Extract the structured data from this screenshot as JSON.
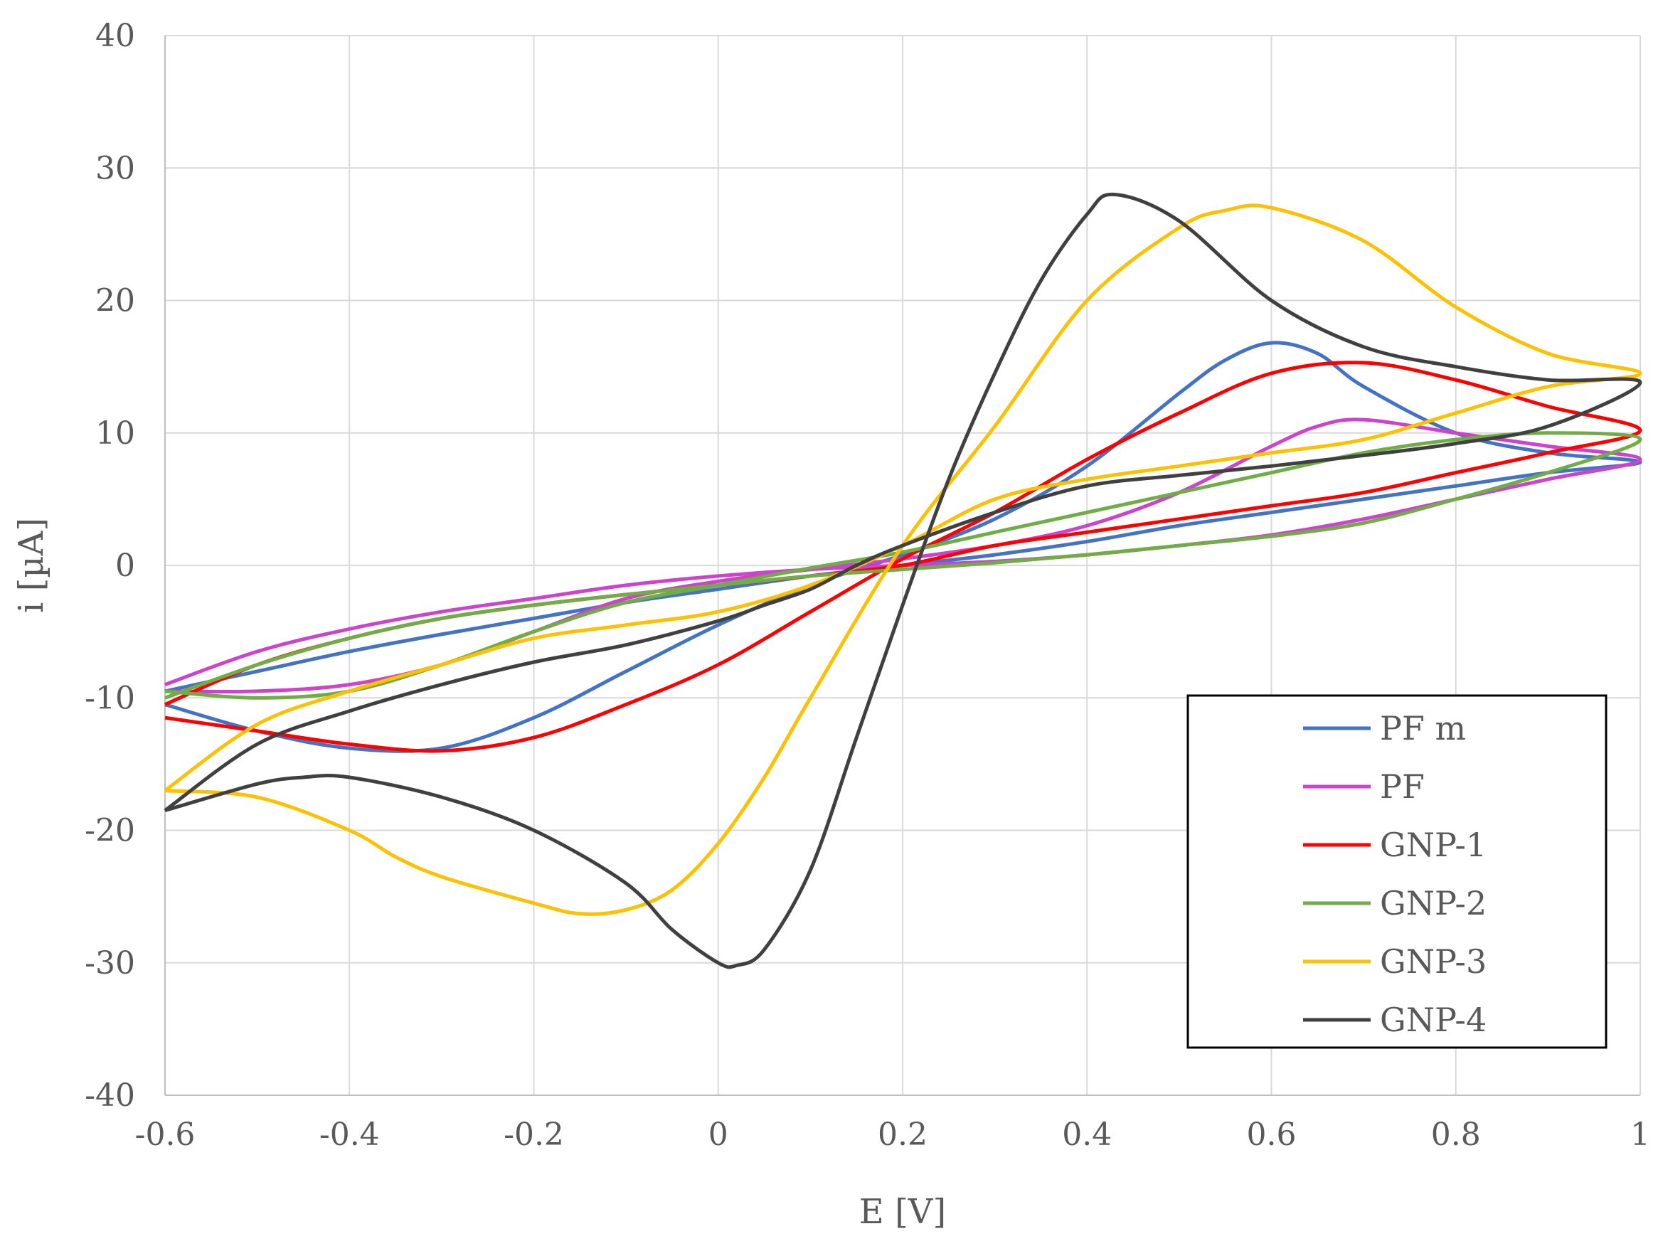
{
  "chart_data": {
    "type": "line",
    "title": "",
    "xlabel": "E [V]",
    "ylabel": "i [µA]",
    "xlim": [
      -0.6,
      1
    ],
    "ylim": [
      -40,
      40
    ],
    "grid": true,
    "legend_position": "bottom-right",
    "x_ticks": [
      "-0.6",
      "-0.4",
      "-0.2",
      "0",
      "0.2",
      "0.4",
      "0.6",
      "0.8",
      "1"
    ],
    "y_ticks": [
      "40",
      "30",
      "20",
      "10",
      "0",
      "-10",
      "-20",
      "-30",
      "-40"
    ],
    "series": [
      {
        "name": "PF m",
        "color": "#4472c4",
        "x": [
          -0.6,
          -0.5,
          -0.4,
          -0.3,
          -0.2,
          -0.1,
          0,
          0.1,
          0.2,
          0.3,
          0.4,
          0.5,
          0.55,
          0.6,
          0.65,
          0.7,
          0.8,
          0.9,
          1,
          0.9,
          0.8,
          0.7,
          0.6,
          0.5,
          0.4,
          0.3,
          0.2,
          0.1,
          0,
          -0.1,
          -0.2,
          -0.3,
          -0.4,
          -0.5,
          -0.6
        ],
        "y": [
          -10.5,
          -12.5,
          -13.8,
          -13.8,
          -11.5,
          -8,
          -4.5,
          -1.5,
          0.8,
          3.5,
          7.5,
          13,
          15.5,
          16.8,
          16,
          13.5,
          10,
          8.5,
          7.8,
          7,
          6,
          5,
          4,
          3,
          1.8,
          0.8,
          0,
          -0.8,
          -1.8,
          -2.8,
          -4,
          -5.2,
          -6.5,
          -8,
          -9.5
        ]
      },
      {
        "name": "PF",
        "color": "#cc44cc",
        "x": [
          -0.6,
          -0.5,
          -0.4,
          -0.3,
          -0.2,
          -0.1,
          0,
          0.1,
          0.2,
          0.3,
          0.4,
          0.5,
          0.6,
          0.65,
          0.7,
          0.8,
          0.9,
          1,
          0.9,
          0.8,
          0.7,
          0.6,
          0.5,
          0.4,
          0.3,
          0.2,
          0.1,
          0,
          -0.1,
          -0.2,
          -0.3,
          -0.4,
          -0.5,
          -0.6
        ],
        "y": [
          -9.5,
          -9.5,
          -9,
          -7.5,
          -5,
          -2.5,
          -1.2,
          -0.3,
          0.5,
          1.5,
          3,
          5.5,
          9,
          10.5,
          11,
          10,
          9,
          8,
          6.5,
          5,
          3.5,
          2.3,
          1.5,
          0.8,
          0.3,
          0,
          -0.3,
          -0.8,
          -1.5,
          -2.5,
          -3.5,
          -4.8,
          -6.5,
          -9
        ]
      },
      {
        "name": "GNP-1",
        "color": "#ff0000",
        "x": [
          -0.6,
          -0.5,
          -0.4,
          -0.3,
          -0.2,
          -0.1,
          0,
          0.1,
          0.2,
          0.3,
          0.4,
          0.5,
          0.6,
          0.7,
          0.8,
          0.9,
          1,
          0.9,
          0.8,
          0.7,
          0.6,
          0.5,
          0.4,
          0.3,
          0.2,
          0.1,
          0,
          -0.1,
          -0.2,
          -0.3,
          -0.4,
          -0.5,
          -0.6
        ],
        "y": [
          -11.5,
          -12.5,
          -13.5,
          -14,
          -13,
          -10.5,
          -7.5,
          -3.5,
          0.5,
          4,
          8,
          11.5,
          14.5,
          15.3,
          14,
          12,
          10.2,
          8.5,
          7,
          5.5,
          4.5,
          3.5,
          2.5,
          1.5,
          0,
          -0.8,
          -1.5,
          -2.2,
          -3,
          -4,
          -5.5,
          -7.5,
          -10.5
        ]
      },
      {
        "name": "GNP-2",
        "color": "#70ad47",
        "x": [
          -0.6,
          -0.5,
          -0.4,
          -0.3,
          -0.2,
          -0.1,
          0,
          0.1,
          0.2,
          0.3,
          0.4,
          0.5,
          0.6,
          0.7,
          0.8,
          0.9,
          1,
          0.9,
          0.8,
          0.7,
          0.6,
          0.5,
          0.4,
          0.3,
          0.2,
          0.1,
          0,
          -0.1,
          -0.2,
          -0.3,
          -0.4,
          -0.5,
          -0.6
        ],
        "y": [
          -9.5,
          -10,
          -9.5,
          -7.5,
          -5,
          -2.8,
          -1.5,
          -0.2,
          1,
          2.5,
          4,
          5.5,
          7,
          8.5,
          9.5,
          10,
          9.5,
          7,
          5,
          3.2,
          2.2,
          1.5,
          0.8,
          0.2,
          -0.3,
          -0.8,
          -1.5,
          -2.2,
          -3,
          -4,
          -5.5,
          -7.5,
          -10
        ]
      },
      {
        "name": "GNP-3",
        "color": "#ffc000",
        "x": [
          -0.6,
          -0.5,
          -0.4,
          -0.35,
          -0.3,
          -0.2,
          -0.15,
          -0.1,
          -0.05,
          0,
          0.05,
          0.1,
          0.2,
          0.3,
          0.4,
          0.5,
          0.55,
          0.6,
          0.7,
          0.8,
          0.9,
          1,
          0.9,
          0.8,
          0.7,
          0.6,
          0.5,
          0.4,
          0.3,
          0.2,
          0.1,
          0,
          -0.1,
          -0.2,
          -0.3,
          -0.4,
          -0.5,
          -0.6
        ],
        "y": [
          -17,
          -17.5,
          -20,
          -22,
          -23.5,
          -25.5,
          -26.3,
          -26,
          -24.5,
          -21,
          -16,
          -10,
          1.5,
          10.5,
          20,
          25.5,
          26.8,
          27,
          24.5,
          19.5,
          16,
          14.5,
          13.5,
          11.5,
          9.5,
          8.5,
          7.5,
          6.5,
          5,
          1.5,
          -1.5,
          -3.5,
          -4.5,
          -5.5,
          -7.5,
          -9.5,
          -12,
          -17
        ]
      },
      {
        "name": "GNP-4",
        "color": "#404040",
        "x": [
          -0.6,
          -0.5,
          -0.45,
          -0.4,
          -0.3,
          -0.2,
          -0.1,
          -0.05,
          0,
          0.02,
          0.05,
          0.1,
          0.15,
          0.2,
          0.25,
          0.3,
          0.35,
          0.4,
          0.43,
          0.5,
          0.6,
          0.7,
          0.8,
          0.9,
          1,
          0.9,
          0.8,
          0.7,
          0.6,
          0.5,
          0.4,
          0.3,
          0.2,
          0.15,
          0.1,
          0.05,
          0,
          -0.1,
          -0.2,
          -0.3,
          -0.4,
          -0.5,
          -0.6
        ],
        "y": [
          -18.5,
          -16.5,
          -16,
          -16,
          -17.5,
          -20,
          -24,
          -27.5,
          -30,
          -30.2,
          -29,
          -23,
          -13,
          -3,
          6.5,
          14.5,
          21.5,
          26.5,
          28,
          26,
          20,
          16.5,
          15,
          14,
          13.8,
          10.5,
          9.2,
          8.3,
          7.5,
          6.8,
          6,
          4,
          1.5,
          0,
          -1.8,
          -3,
          -4.2,
          -6,
          -7.3,
          -9,
          -11,
          -13.5,
          -18.5
        ]
      }
    ]
  }
}
